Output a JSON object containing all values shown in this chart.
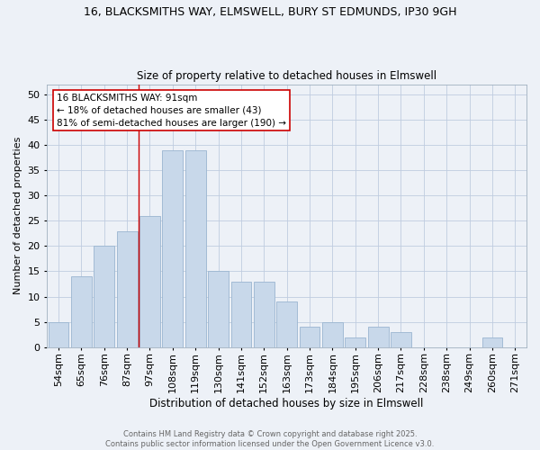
{
  "title_line1": "16, BLACKSMITHS WAY, ELMSWELL, BURY ST EDMUNDS, IP30 9GH",
  "title_line2": "Size of property relative to detached houses in Elmswell",
  "xlabel": "Distribution of detached houses by size in Elmswell",
  "ylabel": "Number of detached properties",
  "categories": [
    "54sqm",
    "65sqm",
    "76sqm",
    "87sqm",
    "97sqm",
    "108sqm",
    "119sqm",
    "130sqm",
    "141sqm",
    "152sqm",
    "163sqm",
    "173sqm",
    "184sqm",
    "195sqm",
    "206sqm",
    "217sqm",
    "228sqm",
    "238sqm",
    "249sqm",
    "260sqm",
    "271sqm"
  ],
  "values": [
    5,
    14,
    20,
    23,
    26,
    39,
    39,
    15,
    13,
    13,
    9,
    4,
    5,
    2,
    4,
    3,
    0,
    0,
    0,
    2,
    0
  ],
  "bar_color": "#c8d8ea",
  "bar_edge_color": "#9ab5d0",
  "grid_color": "#bfcce0",
  "background_color": "#edf1f7",
  "vline_color": "#cc0000",
  "annotation_text": "16 BLACKSMITHS WAY: 91sqm\n← 18% of detached houses are smaller (43)\n81% of semi-detached houses are larger (190) →",
  "annotation_box_color": "#ffffff",
  "annotation_box_edgecolor": "#cc0000",
  "footnote": "Contains HM Land Registry data © Crown copyright and database right 2025.\nContains public sector information licensed under the Open Government Licence v3.0.",
  "ylim": [
    0,
    52
  ],
  "yticks": [
    0,
    5,
    10,
    15,
    20,
    25,
    30,
    35,
    40,
    45,
    50
  ]
}
